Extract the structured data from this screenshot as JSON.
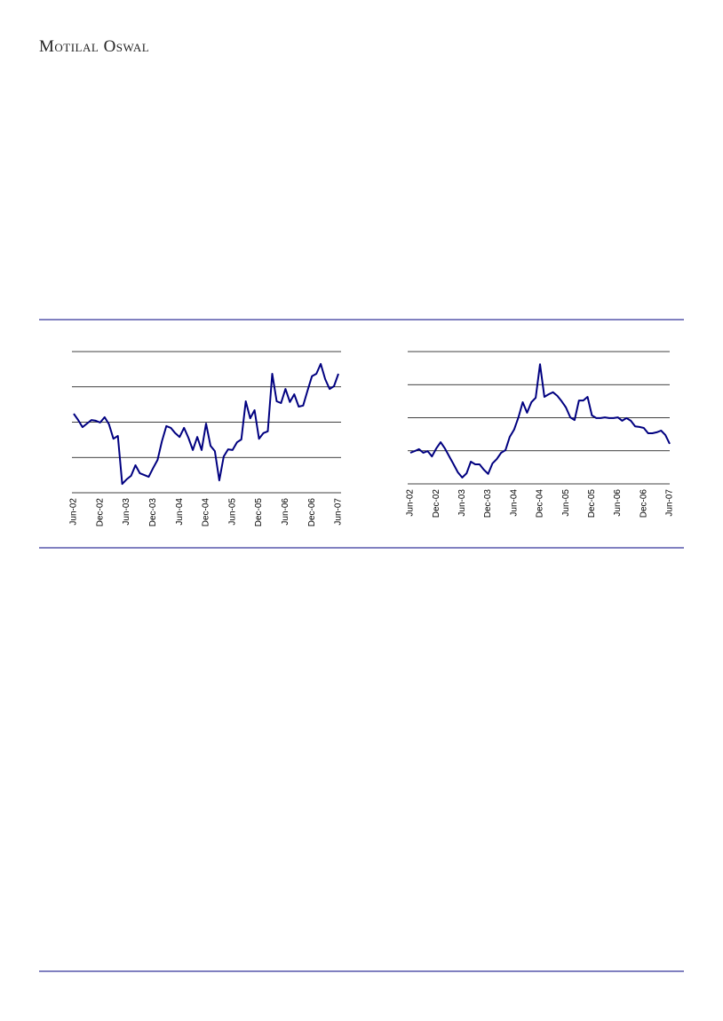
{
  "header": {
    "brand": "Motilal Oswal"
  },
  "chart_data": [
    {
      "type": "line",
      "color": "#000080",
      "grid": true,
      "show_ytick_labels": false,
      "ylim": [
        0,
        4
      ],
      "yticks": [
        0,
        1,
        2,
        3,
        4
      ],
      "categories": [
        "Jun-02",
        null,
        null,
        null,
        null,
        null,
        "Dec-02",
        null,
        null,
        null,
        null,
        null,
        "Jun-03",
        null,
        null,
        null,
        null,
        null,
        "Dec-03",
        null,
        null,
        null,
        null,
        null,
        "Jun-04",
        null,
        null,
        null,
        null,
        null,
        "Dec-04",
        null,
        null,
        null,
        null,
        null,
        "Jun-05",
        null,
        null,
        null,
        null,
        null,
        "Dec-05",
        null,
        null,
        null,
        null,
        null,
        "Jun-06",
        null,
        null,
        null,
        null,
        null,
        "Dec-06",
        null,
        null,
        null,
        null,
        null,
        "Jun-07"
      ],
      "values": [
        2.24,
        2.06,
        1.86,
        1.96,
        2.06,
        2.04,
        1.99,
        2.14,
        1.94,
        1.53,
        1.61,
        0.25,
        0.38,
        0.48,
        0.78,
        0.55,
        0.5,
        0.45,
        0.7,
        0.93,
        1.46,
        1.89,
        1.84,
        1.69,
        1.58,
        1.84,
        1.56,
        1.21,
        1.58,
        1.21,
        1.96,
        1.33,
        1.18,
        0.35,
        1.03,
        1.23,
        1.21,
        1.43,
        1.51,
        2.59,
        2.11,
        2.34,
        1.53,
        1.69,
        1.74,
        3.37,
        2.59,
        2.54,
        2.94,
        2.57,
        2.79,
        2.44,
        2.47,
        2.89,
        3.3,
        3.37,
        3.65,
        3.22,
        2.94,
        3.02,
        3.37
      ]
    },
    {
      "type": "line",
      "color": "#000080",
      "grid": true,
      "show_ytick_labels": false,
      "ylim": [
        0,
        4
      ],
      "yticks": [
        0,
        1,
        2,
        3,
        4
      ],
      "categories": [
        "Jun-02",
        null,
        null,
        null,
        null,
        null,
        "Dec-02",
        null,
        null,
        null,
        null,
        null,
        "Jun-03",
        null,
        null,
        null,
        null,
        null,
        "Dec-03",
        null,
        null,
        null,
        null,
        null,
        "Jun-04",
        null,
        null,
        null,
        null,
        null,
        "Dec-04",
        null,
        null,
        null,
        null,
        null,
        "Jun-05",
        null,
        null,
        null,
        null,
        null,
        "Dec-05",
        null,
        null,
        null,
        null,
        null,
        "Jun-06",
        null,
        null,
        null,
        null,
        null,
        "Dec-06",
        null,
        null,
        null,
        null,
        null,
        "Jun-07"
      ],
      "values": [
        0.94,
        0.99,
        1.05,
        0.94,
        0.99,
        0.83,
        1.07,
        1.26,
        1.07,
        0.83,
        0.59,
        0.35,
        0.19,
        0.32,
        0.67,
        0.59,
        0.59,
        0.43,
        0.3,
        0.62,
        0.75,
        0.94,
        1.02,
        1.42,
        1.64,
        2.01,
        2.47,
        2.15,
        2.47,
        2.6,
        3.62,
        2.63,
        2.71,
        2.77,
        2.66,
        2.5,
        2.31,
        2.01,
        1.93,
        2.52,
        2.52,
        2.63,
        2.07,
        1.99,
        1.99,
        2.01,
        1.99,
        1.99,
        2.01,
        1.91,
        1.99,
        1.91,
        1.74,
        1.72,
        1.69,
        1.53,
        1.53,
        1.56,
        1.61,
        1.48,
        1.21
      ]
    }
  ]
}
